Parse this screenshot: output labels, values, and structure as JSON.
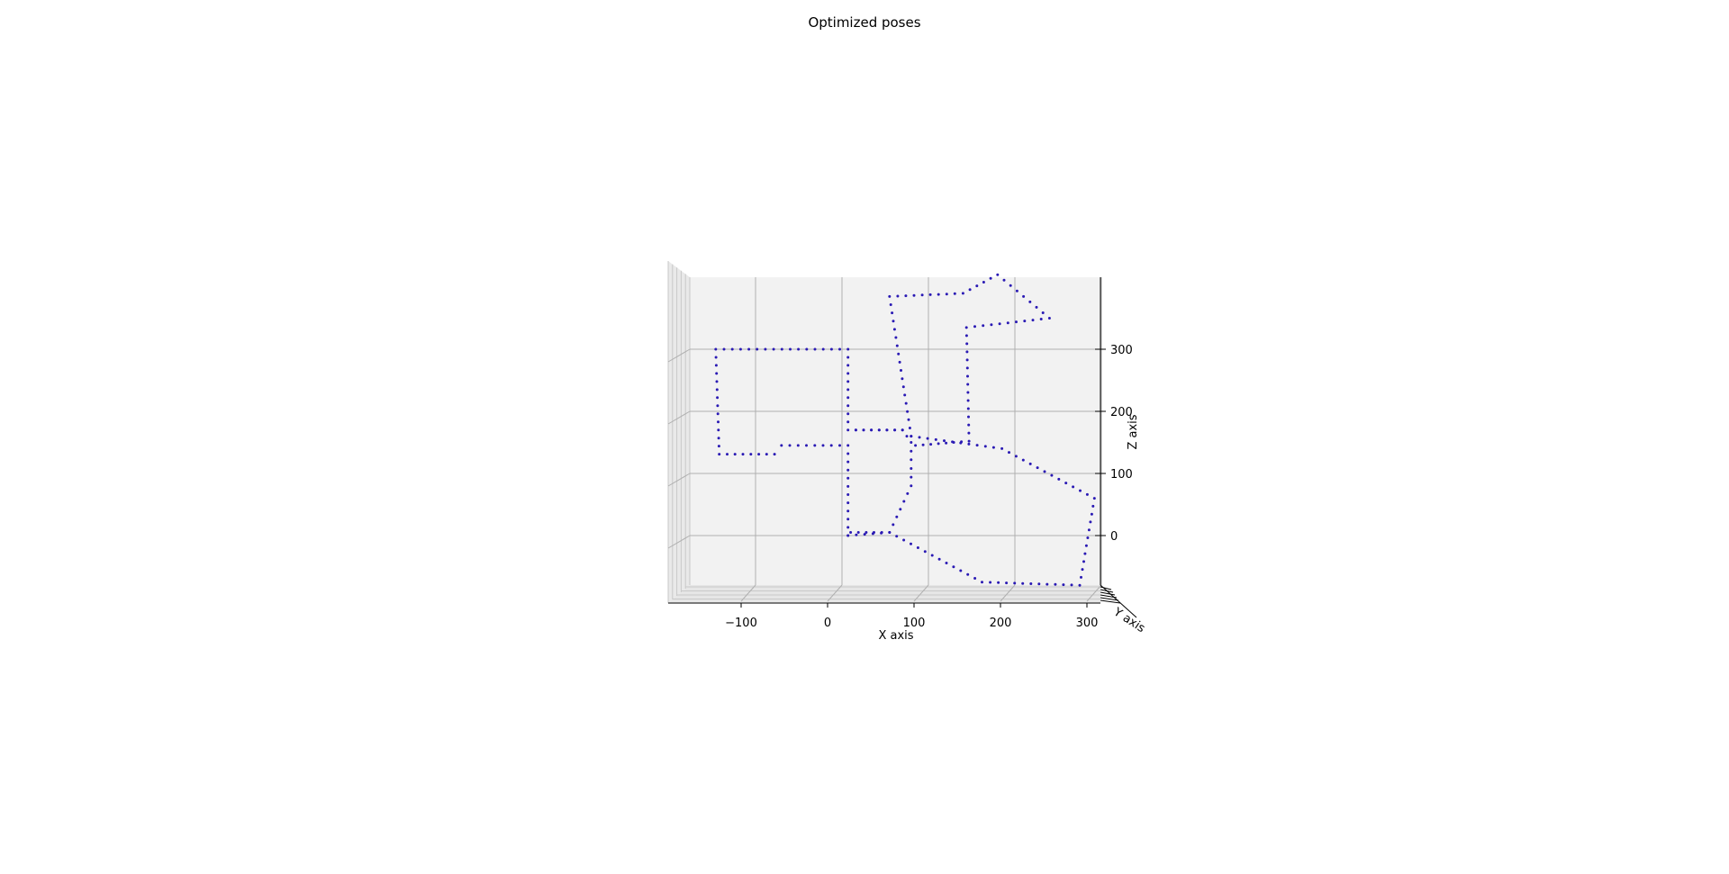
{
  "chart_data": {
    "type": "scatter",
    "title": "Optimized poses",
    "xlabel": "X axis",
    "ylabel": "Y axis",
    "zlabel": "Z axis",
    "xlim": [
      -195,
      300
    ],
    "zlim": [
      -80,
      410
    ],
    "x_ticks": [
      -100,
      0,
      100,
      200,
      300
    ],
    "x_tick_labels": [
      "−100",
      "0",
      "100",
      "200",
      "300"
    ],
    "z_ticks": [
      0,
      100,
      200,
      300
    ],
    "z_tick_labels": [
      "0",
      "100",
      "200",
      "300"
    ],
    "grid": true,
    "marker_color": "#2a1ab4",
    "path": [
      [
        7,
        0
      ],
      [
        7,
        145
      ],
      [
        -70,
        145
      ],
      [
        -78,
        131
      ],
      [
        -142,
        131
      ],
      [
        -146,
        300
      ],
      [
        7,
        300
      ],
      [
        7,
        170
      ],
      [
        70,
        170
      ],
      [
        80,
        160
      ],
      [
        55,
        385
      ],
      [
        140,
        390
      ],
      [
        180,
        420
      ],
      [
        240,
        350
      ],
      [
        144,
        335
      ],
      [
        147,
        152
      ],
      [
        85,
        145
      ],
      [
        80,
        160
      ],
      [
        185,
        140
      ],
      [
        292,
        60
      ],
      [
        275,
        -80
      ],
      [
        162,
        -75
      ],
      [
        55,
        5
      ],
      [
        10,
        5
      ],
      [
        7,
        0
      ],
      [
        55,
        5
      ],
      [
        80,
        80
      ],
      [
        80,
        150
      ],
      [
        70,
        170
      ],
      [
        7,
        170
      ]
    ]
  }
}
